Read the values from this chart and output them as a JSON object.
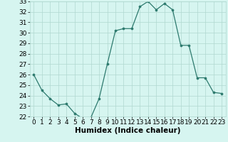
{
  "xlabel": "Humidex (Indice chaleur)",
  "x": [
    0,
    1,
    2,
    3,
    4,
    5,
    6,
    7,
    8,
    9,
    10,
    11,
    12,
    13,
    14,
    15,
    16,
    17,
    18,
    19,
    20,
    21,
    22,
    23
  ],
  "y": [
    26,
    24.5,
    23.7,
    23.1,
    23.2,
    22.3,
    21.8,
    21.9,
    23.7,
    27.0,
    30.2,
    30.4,
    30.4,
    32.5,
    33.0,
    32.2,
    32.8,
    32.2,
    28.8,
    28.8,
    25.7,
    25.7,
    24.3,
    24.2
  ],
  "ylim": [
    22,
    33
  ],
  "xlim": [
    -0.5,
    23.5
  ],
  "yticks": [
    22,
    23,
    24,
    25,
    26,
    27,
    28,
    29,
    30,
    31,
    32,
    33
  ],
  "xticks": [
    0,
    1,
    2,
    3,
    4,
    5,
    6,
    7,
    8,
    9,
    10,
    11,
    12,
    13,
    14,
    15,
    16,
    17,
    18,
    19,
    20,
    21,
    22,
    23
  ],
  "line_color": "#2d7a6e",
  "marker_color": "#2d7a6e",
  "bg_color": "#d6f5f0",
  "grid_color": "#b0d8d0",
  "tick_label_fontsize": 6.5,
  "xlabel_fontsize": 7.5
}
